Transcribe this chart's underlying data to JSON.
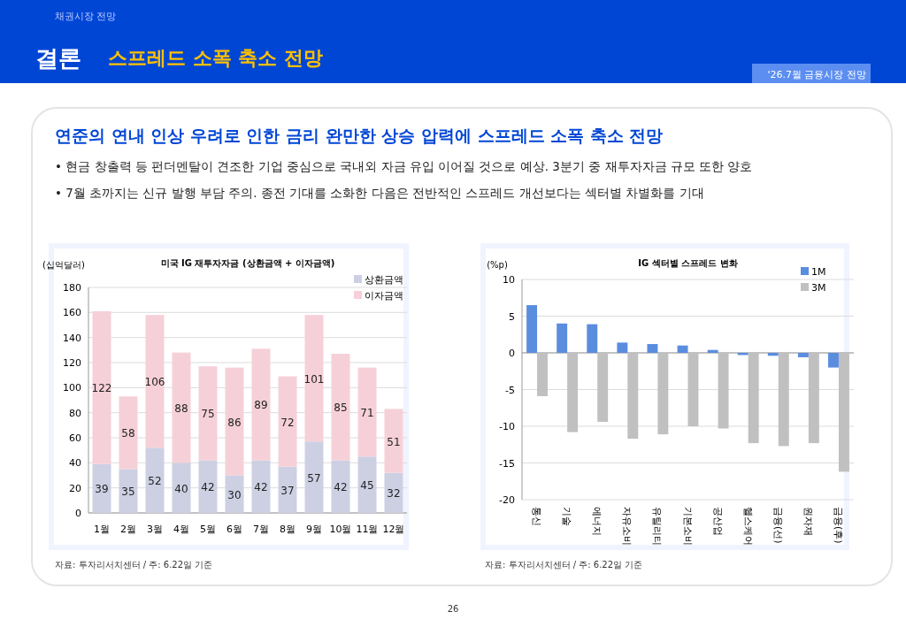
{
  "chart_data": [
    {
      "type": "bar",
      "title": "미국 IG 재투자자금 (상환금액 + 이자금액)",
      "ylabel": "(십억달러)",
      "categories": [
        "1월",
        "2월",
        "3월",
        "4월",
        "5월",
        "6월",
        "7월",
        "8월",
        "9월",
        "10월",
        "11월",
        "12월"
      ],
      "stacked": true,
      "data_labels": true,
      "ylim": [
        0,
        180
      ],
      "yticks": [
        0,
        20,
        40,
        60,
        80,
        100,
        120,
        140,
        160,
        180
      ],
      "grid": "y",
      "legend": "top right",
      "series": [
        {
          "name": "상환금액",
          "color": "#cdd0e3",
          "values": [
            39,
            35,
            52,
            40,
            42,
            30,
            42,
            37,
            57,
            42,
            45,
            32
          ]
        },
        {
          "name": "이자금액",
          "color": "#f6d0d8",
          "values": [
            122,
            58,
            106,
            88,
            75,
            86,
            89,
            72,
            101,
            85,
            71,
            51
          ]
        }
      ],
      "annotations": [
        "채권시장 전망",
        "결론",
        "스프레드 소폭 축소 전망",
        "'26.7월 금융시장 전망",
        "연준의 연내 인상 우려로 인한 금리 완만한 상승 압력에 스프레드 소폭 축소 전망",
        "• 현금 창출력 등 펀더멘탈이 견조한 기업 중심으로 국내외 자금 유입 이어질 것으로 예상. 3분기 중 재투자자금 규모 또한 양호",
        "• 7월 초까지는 신규 발행 부담 주의. 종전 기대를 소화한 다음은 전반적인 스프레드 개선보다는 섹터별 차별화를 기대",
        "자료: 투자리서치센터 / 주: 6.22일 기준",
        "26"
      ]
    },
    {
      "type": "bar",
      "title": "IG 섹터별 스프레드 변화",
      "ylabel": "(%p)",
      "categories": [
        "통신",
        "기술",
        "에너지",
        "자유소비",
        "유틸리티",
        "기본소비",
        "공산업",
        "헬스케어",
        "금융(선)",
        "원자재",
        "금융(후)"
      ],
      "ylim": [
        -20,
        10
      ],
      "yticks": [
        -20,
        -15,
        -10,
        -5,
        0,
        5,
        10
      ],
      "grid": "y",
      "legend": "top right",
      "series": [
        {
          "name": "1M",
          "color": "#5b8ddf",
          "values": [
            6.5,
            4.0,
            3.9,
            1.4,
            1.2,
            1.0,
            0.4,
            -0.3,
            -0.4,
            -0.6,
            -2.0
          ]
        },
        {
          "name": "3M",
          "color": "#c0c0c0",
          "values": [
            -5.9,
            -10.8,
            -9.4,
            -11.7,
            -11.1,
            -10.0,
            -10.3,
            -12.3,
            -12.7,
            -12.3,
            -16.2
          ]
        }
      ],
      "annotations": [
        "자료: 투자리서치센터 / 주: 6.22일 기준"
      ]
    }
  ]
}
